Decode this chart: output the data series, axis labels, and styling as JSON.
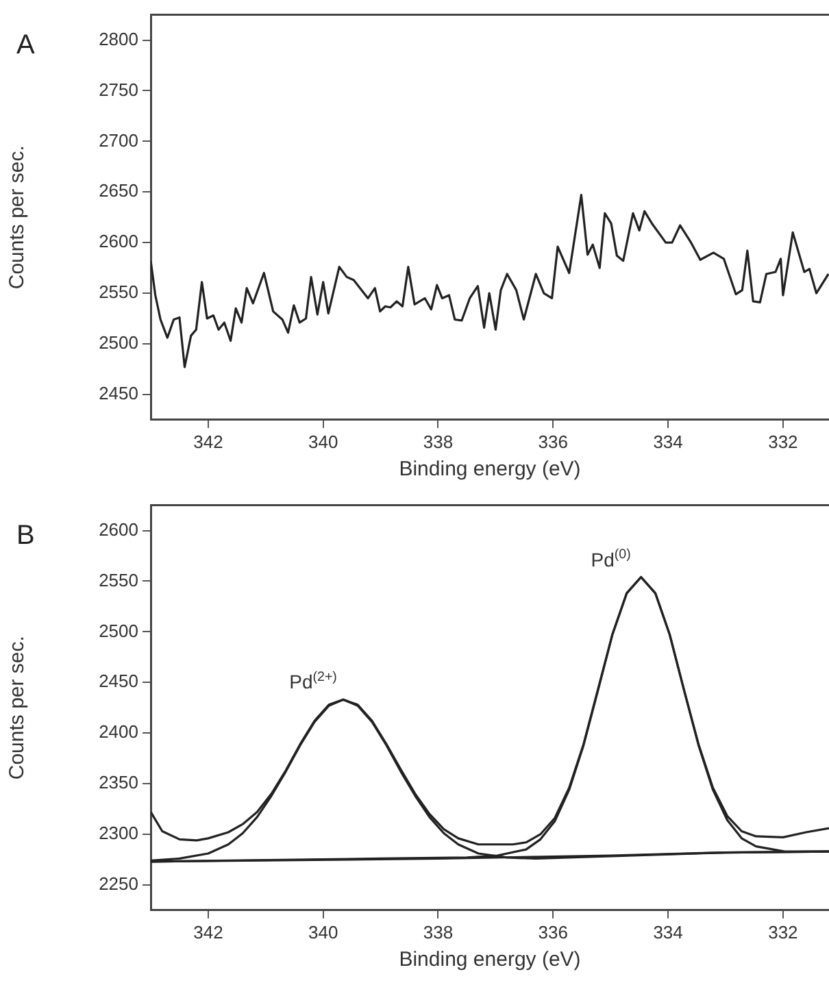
{
  "chart_data": [
    {
      "type": "line",
      "title": "A",
      "xlabel": "Binding energy (eV)",
      "ylabel": "Counts per sec.",
      "xlim": [
        343,
        331.2
      ],
      "xticks": [
        342,
        340,
        338,
        336,
        334,
        332
      ],
      "ylim": [
        2425,
        2825
      ],
      "yticks": [
        2450,
        2500,
        2550,
        2600,
        2650,
        2700,
        2750,
        2800
      ],
      "grid": false,
      "legend": false,
      "marker": "none",
      "line_style": "solid",
      "series": [
        {
          "color": "#222222",
          "x": [
            343.0,
            342.92,
            342.83,
            342.71,
            342.6,
            342.5,
            342.41,
            342.3,
            342.21,
            342.11,
            342.02,
            341.91,
            341.82,
            341.72,
            341.61,
            341.52,
            341.42,
            341.33,
            341.22,
            341.03,
            340.87,
            340.71,
            340.61,
            340.51,
            340.41,
            340.3,
            340.21,
            340.1,
            340.0,
            339.91,
            339.72,
            339.59,
            339.47,
            339.22,
            339.1,
            339.01,
            338.92,
            338.83,
            338.72,
            338.62,
            338.52,
            338.41,
            338.23,
            338.12,
            338.02,
            337.93,
            337.81,
            337.71,
            337.59,
            337.45,
            337.31,
            337.2,
            337.11,
            337.0,
            336.91,
            336.8,
            336.64,
            336.51,
            336.3,
            336.16,
            336.02,
            335.92,
            335.72,
            335.51,
            335.4,
            335.31,
            335.19,
            335.1,
            334.99,
            334.89,
            334.78,
            334.61,
            334.5,
            334.41,
            334.27,
            334.04,
            333.93,
            333.79,
            333.6,
            333.44,
            333.21,
            333.03,
            332.82,
            332.71,
            332.62,
            332.52,
            332.4,
            332.29,
            332.13,
            332.04,
            332.0,
            331.83,
            331.63,
            331.54,
            331.42,
            331.21
          ],
          "values": [
            2582,
            2548,
            2524,
            2506,
            2524,
            2526,
            2477,
            2508,
            2514,
            2561,
            2525,
            2528,
            2514,
            2521,
            2503,
            2535,
            2521,
            2555,
            2540,
            2570,
            2532,
            2524,
            2511,
            2538,
            2521,
            2525,
            2566,
            2529,
            2561,
            2530,
            2576,
            2566,
            2563,
            2545,
            2555,
            2532,
            2537,
            2536,
            2542,
            2537,
            2576,
            2539,
            2545,
            2534,
            2558,
            2545,
            2548,
            2524,
            2523,
            2545,
            2557,
            2516,
            2550,
            2514,
            2553,
            2569,
            2553,
            2524,
            2569,
            2550,
            2545,
            2596,
            2570,
            2647,
            2588,
            2598,
            2575,
            2629,
            2619,
            2587,
            2582,
            2629,
            2612,
            2631,
            2618,
            2600,
            2600,
            2617,
            2600,
            2583,
            2590,
            2584,
            2549,
            2553,
            2592,
            2542,
            2541,
            2569,
            2571,
            2584,
            2548,
            2610,
            2571,
            2574,
            2550,
            2569
          ]
        }
      ]
    },
    {
      "type": "line",
      "title": "B",
      "xlabel": "Binding energy (eV)",
      "ylabel": "Counts per sec.",
      "xlim": [
        343,
        331.2
      ],
      "xticks": [
        342,
        340,
        338,
        336,
        334,
        332
      ],
      "ylim": [
        2225,
        2625
      ],
      "yticks": [
        2250,
        2300,
        2350,
        2400,
        2450,
        2500,
        2550,
        2600
      ],
      "grid": false,
      "legend": false,
      "marker": "none",
      "line_style": "solid",
      "annotations": [
        {
          "text": "Pd$^{(2+)}$",
          "x": 339.65,
          "y": 2433
        },
        {
          "text": "Pd$^{(0)}$",
          "x": 334.47,
          "y": 2554
        }
      ],
      "series": [
        {
          "color": "#222222",
          "x": [
            343,
            338,
            335,
            333,
            331.2
          ],
          "values": [
            2273,
            2276,
            2279,
            2282,
            2283
          ]
        },
        {
          "color": "#222222",
          "x": [
            343,
            342.5,
            342,
            341.65,
            341.4,
            341.15,
            340.9,
            340.65,
            340.4,
            340.15,
            339.9,
            339.65,
            339.4,
            339.15,
            338.9,
            338.65,
            338.4,
            338.15,
            337.9,
            337.65,
            337.3,
            336.8,
            336.3,
            333,
            331.2
          ],
          "values": [
            2274,
            2276,
            2281,
            2290,
            2301,
            2317,
            2338,
            2362,
            2388,
            2411,
            2427,
            2433,
            2427,
            2411,
            2388,
            2362,
            2338,
            2317,
            2301,
            2290,
            2281,
            2277,
            2276,
            2282,
            2283
          ]
        },
        {
          "color": "#222222",
          "x": [
            343,
            339,
            337.5,
            336.97,
            336.47,
            336.22,
            335.97,
            335.72,
            335.47,
            335.22,
            334.97,
            334.72,
            334.47,
            334.22,
            333.97,
            333.72,
            333.47,
            333.22,
            332.97,
            332.72,
            332.47,
            331.97,
            331.2
          ],
          "values": [
            2273,
            2276,
            2277,
            2279,
            2285,
            2295,
            2313,
            2344,
            2388,
            2442,
            2497,
            2538,
            2554,
            2538,
            2497,
            2442,
            2388,
            2344,
            2314,
            2296,
            2288,
            2283,
            2283
          ]
        },
        {
          "color": "#222222",
          "x": [
            343,
            342.8,
            342.5,
            342.2,
            342,
            341.65,
            341.4,
            341.15,
            340.9,
            340.65,
            340.4,
            340.15,
            339.9,
            339.65,
            339.4,
            339.15,
            338.9,
            338.65,
            338.4,
            338.15,
            337.9,
            337.65,
            337.3,
            337.0,
            336.7,
            336.47,
            336.22,
            335.97,
            335.72,
            335.47,
            335.22,
            334.97,
            334.72,
            334.47,
            334.22,
            333.97,
            333.72,
            333.47,
            333.22,
            332.97,
            332.72,
            332.47,
            332.0,
            331.6,
            331.2
          ],
          "values": [
            2322,
            2303,
            2295,
            2294,
            2296,
            2302,
            2310,
            2322,
            2340,
            2363,
            2389,
            2412,
            2428,
            2433,
            2428,
            2412,
            2389,
            2364,
            2340,
            2320,
            2305,
            2296,
            2290,
            2290,
            2290,
            2292,
            2300,
            2316,
            2346,
            2389,
            2443,
            2497,
            2538,
            2554,
            2538,
            2497,
            2442,
            2389,
            2346,
            2318,
            2303,
            2298,
            2297,
            2302,
            2306
          ]
        }
      ]
    }
  ]
}
